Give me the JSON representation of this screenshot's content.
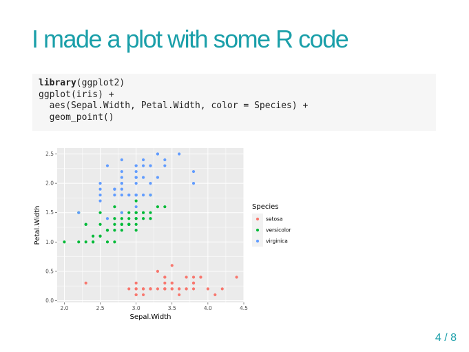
{
  "slide": {
    "title": "I made a plot with some R code",
    "page_current": "4",
    "page_separator": "/",
    "page_total": "8",
    "accent_color": "#1a9fa9"
  },
  "code": {
    "line1_fn": "library",
    "line1_rest": "(ggplot2)",
    "line2": "ggplot(iris) +",
    "line3": "  aes(Sepal.Width, Petal.Width, color = Species) +",
    "line4": "  geom_point()"
  },
  "chart_data": {
    "type": "scatter",
    "xlabel": "Sepal.Width",
    "ylabel": "Petal.Width",
    "xlim": [
      1.9,
      4.5
    ],
    "ylim": [
      -0.03,
      2.6
    ],
    "x_ticks": [
      "2.0",
      "2.5",
      "3.0",
      "3.5",
      "4.0",
      "4.5"
    ],
    "y_ticks": [
      "0.0",
      "0.5",
      "1.0",
      "1.5",
      "2.0",
      "2.5"
    ],
    "grid": true,
    "legend_title": "Species",
    "legend_position": "right",
    "series": [
      {
        "name": "setosa",
        "color": "#F8766D",
        "points": [
          [
            3.5,
            0.2
          ],
          [
            3.0,
            0.2
          ],
          [
            3.2,
            0.2
          ],
          [
            3.1,
            0.2
          ],
          [
            3.6,
            0.2
          ],
          [
            3.9,
            0.4
          ],
          [
            3.4,
            0.3
          ],
          [
            3.4,
            0.2
          ],
          [
            2.9,
            0.2
          ],
          [
            3.1,
            0.1
          ],
          [
            3.7,
            0.2
          ],
          [
            3.4,
            0.2
          ],
          [
            3.0,
            0.1
          ],
          [
            3.0,
            0.1
          ],
          [
            4.0,
            0.2
          ],
          [
            4.4,
            0.4
          ],
          [
            3.9,
            0.4
          ],
          [
            3.5,
            0.3
          ],
          [
            3.8,
            0.3
          ],
          [
            3.8,
            0.3
          ],
          [
            3.4,
            0.2
          ],
          [
            3.7,
            0.4
          ],
          [
            3.6,
            0.2
          ],
          [
            3.3,
            0.5
          ],
          [
            3.4,
            0.2
          ],
          [
            3.0,
            0.2
          ],
          [
            3.4,
            0.4
          ],
          [
            3.5,
            0.2
          ],
          [
            3.4,
            0.2
          ],
          [
            3.2,
            0.2
          ],
          [
            3.1,
            0.2
          ],
          [
            3.4,
            0.4
          ],
          [
            4.1,
            0.1
          ],
          [
            4.2,
            0.2
          ],
          [
            3.1,
            0.2
          ],
          [
            3.2,
            0.2
          ],
          [
            3.5,
            0.2
          ],
          [
            3.6,
            0.1
          ],
          [
            3.0,
            0.2
          ],
          [
            3.4,
            0.2
          ],
          [
            3.5,
            0.3
          ],
          [
            2.3,
            0.3
          ],
          [
            3.2,
            0.2
          ],
          [
            3.5,
            0.6
          ],
          [
            3.8,
            0.4
          ],
          [
            3.0,
            0.3
          ],
          [
            3.8,
            0.2
          ],
          [
            3.2,
            0.2
          ],
          [
            3.7,
            0.2
          ],
          [
            3.3,
            0.2
          ]
        ]
      },
      {
        "name": "versicolor",
        "color": "#00BA38",
        "points": [
          [
            3.2,
            1.4
          ],
          [
            3.2,
            1.5
          ],
          [
            3.1,
            1.5
          ],
          [
            2.3,
            1.3
          ],
          [
            2.8,
            1.5
          ],
          [
            2.8,
            1.3
          ],
          [
            3.3,
            1.6
          ],
          [
            2.4,
            1.0
          ],
          [
            2.9,
            1.3
          ],
          [
            2.7,
            1.4
          ],
          [
            2.0,
            1.0
          ],
          [
            3.0,
            1.5
          ],
          [
            2.2,
            1.0
          ],
          [
            2.9,
            1.4
          ],
          [
            2.9,
            1.3
          ],
          [
            3.1,
            1.4
          ],
          [
            3.0,
            1.5
          ],
          [
            2.7,
            1.0
          ],
          [
            2.2,
            1.5
          ],
          [
            2.5,
            1.1
          ],
          [
            3.2,
            1.8
          ],
          [
            2.8,
            1.3
          ],
          [
            2.5,
            1.5
          ],
          [
            2.8,
            1.2
          ],
          [
            2.9,
            1.3
          ],
          [
            3.0,
            1.4
          ],
          [
            2.8,
            1.4
          ],
          [
            3.0,
            1.7
          ],
          [
            2.9,
            1.5
          ],
          [
            2.6,
            1.0
          ],
          [
            2.4,
            1.1
          ],
          [
            2.4,
            1.0
          ],
          [
            2.7,
            1.2
          ],
          [
            2.7,
            1.6
          ],
          [
            3.0,
            1.5
          ],
          [
            3.4,
            1.6
          ],
          [
            3.1,
            1.5
          ],
          [
            2.3,
            1.3
          ],
          [
            3.0,
            1.3
          ],
          [
            2.5,
            1.3
          ],
          [
            2.6,
            1.2
          ],
          [
            3.0,
            1.4
          ],
          [
            2.6,
            1.2
          ],
          [
            2.3,
            1.0
          ],
          [
            2.7,
            1.3
          ],
          [
            3.0,
            1.2
          ],
          [
            2.9,
            1.3
          ],
          [
            2.9,
            1.3
          ],
          [
            2.5,
            1.1
          ],
          [
            2.8,
            1.3
          ]
        ]
      },
      {
        "name": "virginica",
        "color": "#619CFF",
        "points": [
          [
            3.3,
            2.5
          ],
          [
            2.7,
            1.9
          ],
          [
            3.0,
            2.1
          ],
          [
            2.9,
            1.8
          ],
          [
            3.0,
            2.2
          ],
          [
            3.0,
            2.1
          ],
          [
            2.5,
            1.7
          ],
          [
            2.9,
            1.8
          ],
          [
            2.5,
            1.8
          ],
          [
            3.6,
            2.5
          ],
          [
            3.2,
            2.0
          ],
          [
            2.7,
            1.9
          ],
          [
            3.0,
            2.1
          ],
          [
            2.5,
            2.0
          ],
          [
            2.8,
            2.4
          ],
          [
            3.2,
            2.3
          ],
          [
            3.0,
            1.8
          ],
          [
            3.8,
            2.2
          ],
          [
            2.6,
            2.3
          ],
          [
            2.2,
            1.5
          ],
          [
            3.2,
            2.3
          ],
          [
            2.8,
            2.0
          ],
          [
            2.8,
            2.0
          ],
          [
            2.7,
            1.8
          ],
          [
            3.3,
            2.1
          ],
          [
            3.2,
            1.8
          ],
          [
            2.8,
            1.8
          ],
          [
            3.0,
            1.8
          ],
          [
            2.8,
            2.1
          ],
          [
            3.0,
            1.6
          ],
          [
            2.8,
            1.9
          ],
          [
            3.8,
            2.0
          ],
          [
            2.8,
            2.2
          ],
          [
            2.8,
            1.5
          ],
          [
            2.6,
            1.4
          ],
          [
            3.0,
            2.3
          ],
          [
            3.4,
            2.4
          ],
          [
            3.1,
            1.8
          ],
          [
            3.0,
            1.8
          ],
          [
            3.1,
            2.1
          ],
          [
            3.1,
            2.4
          ],
          [
            3.1,
            2.3
          ],
          [
            2.7,
            1.9
          ],
          [
            3.2,
            2.3
          ],
          [
            3.3,
            2.5
          ],
          [
            3.0,
            2.3
          ],
          [
            2.5,
            1.9
          ],
          [
            3.0,
            2.0
          ],
          [
            3.4,
            2.3
          ],
          [
            3.0,
            1.8
          ]
        ]
      }
    ]
  }
}
